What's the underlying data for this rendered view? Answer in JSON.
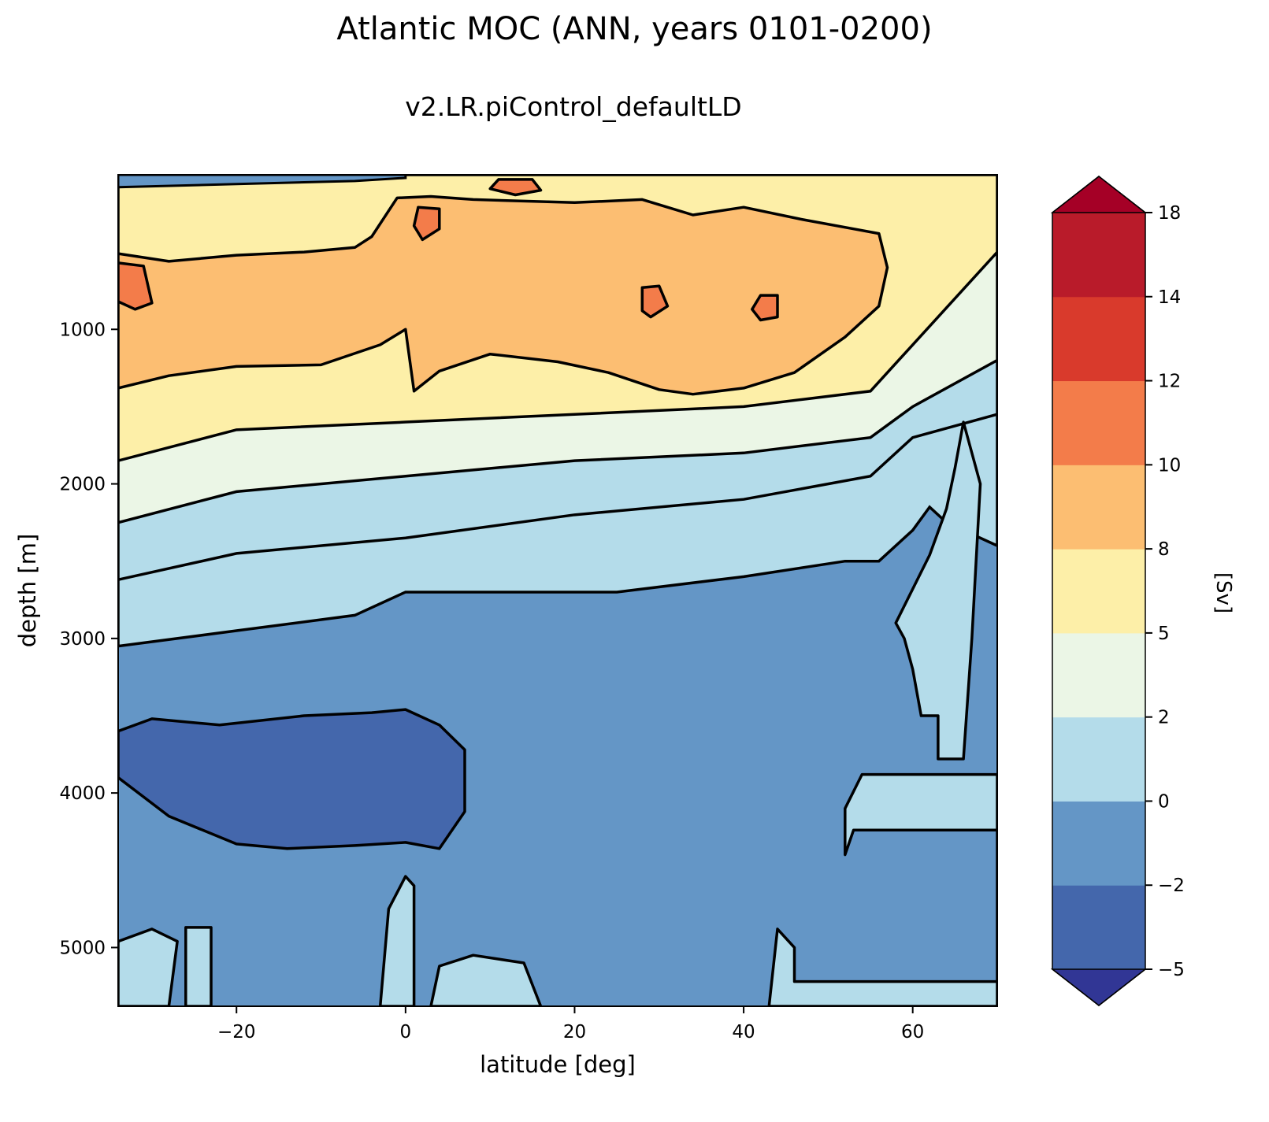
{
  "chart_data": {
    "type": "contourf",
    "title": "Atlantic MOC (ANN, years 0101-0200)",
    "subtitle": "v2.LR.piControl_defaultLD",
    "xlabel": "latitude [deg]",
    "ylabel": "depth [m]",
    "xlim": [
      -34,
      70
    ],
    "ylim": [
      5380,
      0
    ],
    "x_ticks": [
      -20,
      0,
      20,
      40,
      60
    ],
    "x_tick_labels": [
      "−20",
      "0",
      "20",
      "40",
      "60"
    ],
    "y_ticks": [
      1000,
      2000,
      3000,
      4000,
      5000
    ],
    "y_tick_labels": [
      "1000",
      "2000",
      "3000",
      "4000",
      "5000"
    ],
    "colorbar": {
      "label": "[Sv]",
      "levels": [
        -5,
        -2,
        0,
        2,
        5,
        8,
        10,
        12,
        14,
        18
      ],
      "tick_labels": [
        "−5",
        "−2",
        "0",
        "2",
        "5",
        "8",
        "10",
        "12",
        "14",
        "18"
      ],
      "colors": [
        "#4467ac",
        "#6496c6",
        "#b4dcea",
        "#ebf6e6",
        "#fdefa8",
        "#fcbe72",
        "#f37c4a",
        "#d93a2c",
        "#b91b2a"
      ],
      "under_color": "#313695",
      "over_color": "#a50026",
      "extend": "both"
    },
    "contour_line_color": "#000000",
    "regions": [
      {
        "name": "upper-cell-8-10",
        "level": 8,
        "points": [
          [
            -34,
            510
          ],
          [
            -28,
            560
          ],
          [
            -20,
            520
          ],
          [
            -12,
            500
          ],
          [
            -6,
            470
          ],
          [
            -4,
            400
          ],
          [
            -1,
            150
          ],
          [
            3,
            140
          ],
          [
            8,
            160
          ],
          [
            20,
            180
          ],
          [
            28,
            160
          ],
          [
            34,
            260
          ],
          [
            40,
            210
          ],
          [
            47,
            290
          ],
          [
            53,
            350
          ],
          [
            56,
            380
          ],
          [
            57,
            600
          ],
          [
            56,
            850
          ],
          [
            52,
            1050
          ],
          [
            46,
            1280
          ],
          [
            40,
            1380
          ],
          [
            34,
            1420
          ],
          [
            30,
            1390
          ],
          [
            24,
            1280
          ],
          [
            18,
            1210
          ],
          [
            10,
            1160
          ],
          [
            4,
            1270
          ],
          [
            1,
            1400
          ],
          [
            0,
            1000
          ],
          [
            -3,
            1100
          ],
          [
            -10,
            1230
          ],
          [
            -20,
            1240
          ],
          [
            -28,
            1300
          ],
          [
            -34,
            1380
          ]
        ]
      },
      {
        "name": "south-core-10",
        "level": 10,
        "points": [
          [
            -34,
            570
          ],
          [
            -31,
            590
          ],
          [
            -30,
            830
          ],
          [
            -32,
            870
          ],
          [
            -34,
            820
          ]
        ]
      },
      {
        "name": "equator-core-10",
        "level": 10,
        "points": [
          [
            1.5,
            210
          ],
          [
            4,
            220
          ],
          [
            4,
            350
          ],
          [
            2,
            420
          ],
          [
            1,
            330
          ]
        ]
      },
      {
        "name": "top-core-10",
        "level": 10,
        "points": [
          [
            11,
            30
          ],
          [
            15,
            30
          ],
          [
            16,
            100
          ],
          [
            13,
            130
          ],
          [
            10,
            90
          ]
        ]
      },
      {
        "name": "core-10-28n",
        "level": 10,
        "points": [
          [
            28,
            730
          ],
          [
            30,
            720
          ],
          [
            31,
            850
          ],
          [
            29,
            920
          ],
          [
            28,
            880
          ]
        ]
      },
      {
        "name": "core-10-42n",
        "level": 10,
        "points": [
          [
            42,
            780
          ],
          [
            44,
            780
          ],
          [
            44,
            920
          ],
          [
            42,
            940
          ],
          [
            41,
            870
          ]
        ]
      },
      {
        "name": "deep-cell-minus2",
        "level": -5,
        "points": [
          [
            -34,
            3600
          ],
          [
            -30,
            3520
          ],
          [
            -22,
            3560
          ],
          [
            -12,
            3500
          ],
          [
            -4,
            3480
          ],
          [
            0,
            3460
          ],
          [
            4,
            3560
          ],
          [
            7,
            3720
          ],
          [
            7,
            4120
          ],
          [
            4,
            4360
          ],
          [
            0,
            4320
          ],
          [
            -6,
            4340
          ],
          [
            -14,
            4360
          ],
          [
            -20,
            4330
          ],
          [
            -28,
            4150
          ],
          [
            -34,
            3900
          ]
        ]
      },
      {
        "name": "bottom-water-south",
        "level": 0,
        "points": [
          [
            -34,
            4960
          ],
          [
            -30,
            4880
          ],
          [
            -27,
            4960
          ],
          [
            -28,
            5380
          ],
          [
            -34,
            5380
          ]
        ]
      },
      {
        "name": "bottom-water-south-2",
        "level": 0,
        "points": [
          [
            -26,
            4870
          ],
          [
            -23,
            4870
          ],
          [
            -23,
            5380
          ],
          [
            -26,
            5380
          ]
        ]
      },
      {
        "name": "bottom-water-eq",
        "level": 0,
        "points": [
          [
            -2,
            4750
          ],
          [
            0,
            4540
          ],
          [
            1,
            4600
          ],
          [
            1,
            5380
          ],
          [
            -3,
            5380
          ]
        ]
      },
      {
        "name": "bottom-water-5n",
        "level": 0,
        "points": [
          [
            4,
            5120
          ],
          [
            8,
            5050
          ],
          [
            14,
            5100
          ],
          [
            16,
            5380
          ],
          [
            3,
            5380
          ]
        ]
      },
      {
        "name": "north-deep-box",
        "level": 0,
        "points": [
          [
            54,
            3880
          ],
          [
            70,
            3880
          ],
          [
            70,
            5380
          ],
          [
            43,
            5380
          ],
          [
            44,
            4880
          ],
          [
            46,
            5000
          ],
          [
            46,
            5220
          ],
          [
            70,
            5220
          ],
          [
            70,
            4240
          ],
          [
            53,
            4240
          ],
          [
            52,
            4400
          ],
          [
            52,
            4100
          ]
        ]
      },
      {
        "name": "north-high-lat-column",
        "level": 0,
        "points": [
          [
            58,
            2900
          ],
          [
            62,
            2460
          ],
          [
            64,
            2160
          ],
          [
            65,
            1900
          ],
          [
            66,
            1600
          ],
          [
            68,
            2000
          ],
          [
            67,
            3000
          ],
          [
            66,
            3780
          ],
          [
            63,
            3780
          ],
          [
            63,
            3500
          ],
          [
            61,
            3500
          ],
          [
            60,
            3200
          ],
          [
            59,
            3000
          ]
        ]
      }
    ]
  }
}
